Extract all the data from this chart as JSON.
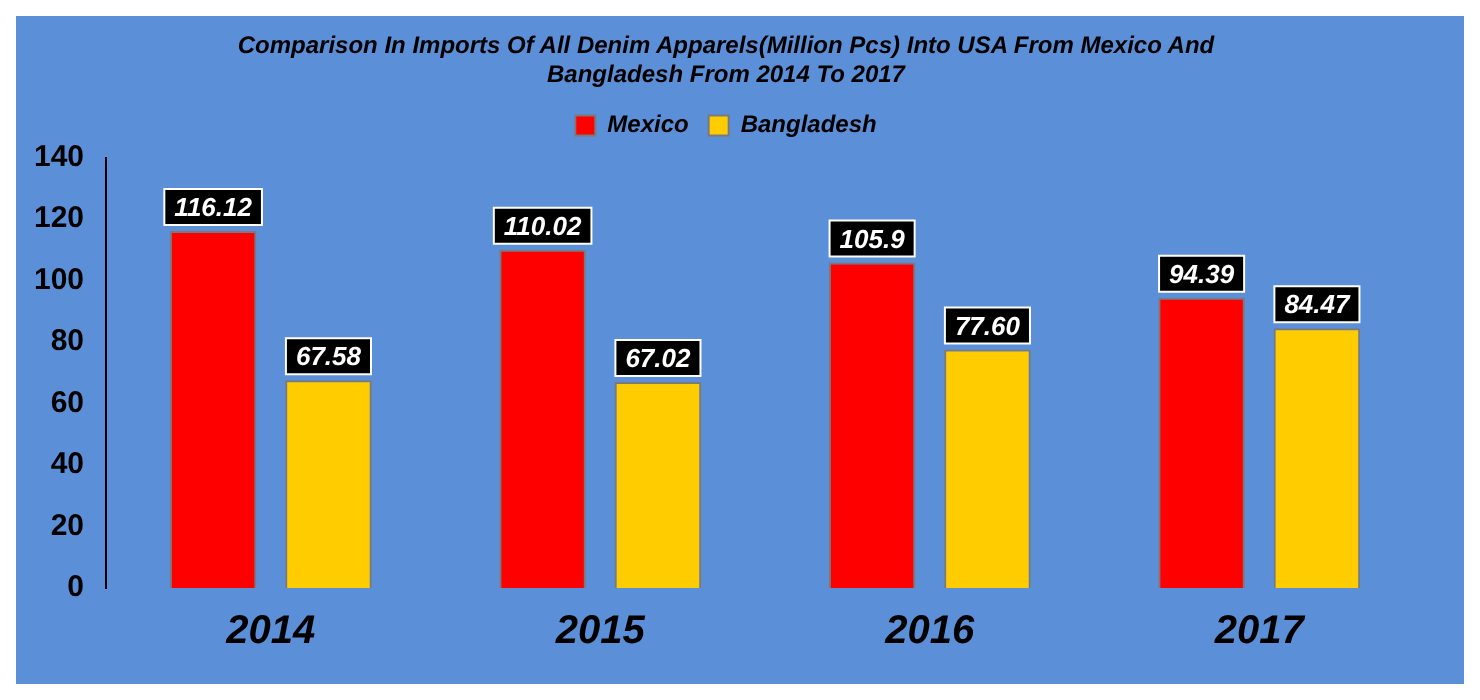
{
  "chart_data": {
    "type": "bar",
    "title": "Comparison In Imports Of All Denim Apparels(Million Pcs) Into USA From Mexico And Bangladesh From 2014 To 2017",
    "categories": [
      "2014",
      "2015",
      "2016",
      "2017"
    ],
    "series": [
      {
        "name": "Mexico",
        "color": "#ff0000",
        "values": [
          116.12,
          110.02,
          105.9,
          94.39
        ],
        "value_labels": [
          "116.12",
          "110.02",
          "105.9",
          "94.39"
        ]
      },
      {
        "name": "Bangladesh",
        "color": "#ffcc00",
        "values": [
          67.58,
          67.02,
          77.6,
          84.47
        ],
        "value_labels": [
          "67.58",
          "67.02",
          "77.60",
          "84.47"
        ]
      }
    ],
    "ylim": [
      0,
      140
    ],
    "yticks": [
      0,
      20,
      40,
      60,
      80,
      100,
      120,
      140
    ],
    "grid": false,
    "legend": "top"
  }
}
